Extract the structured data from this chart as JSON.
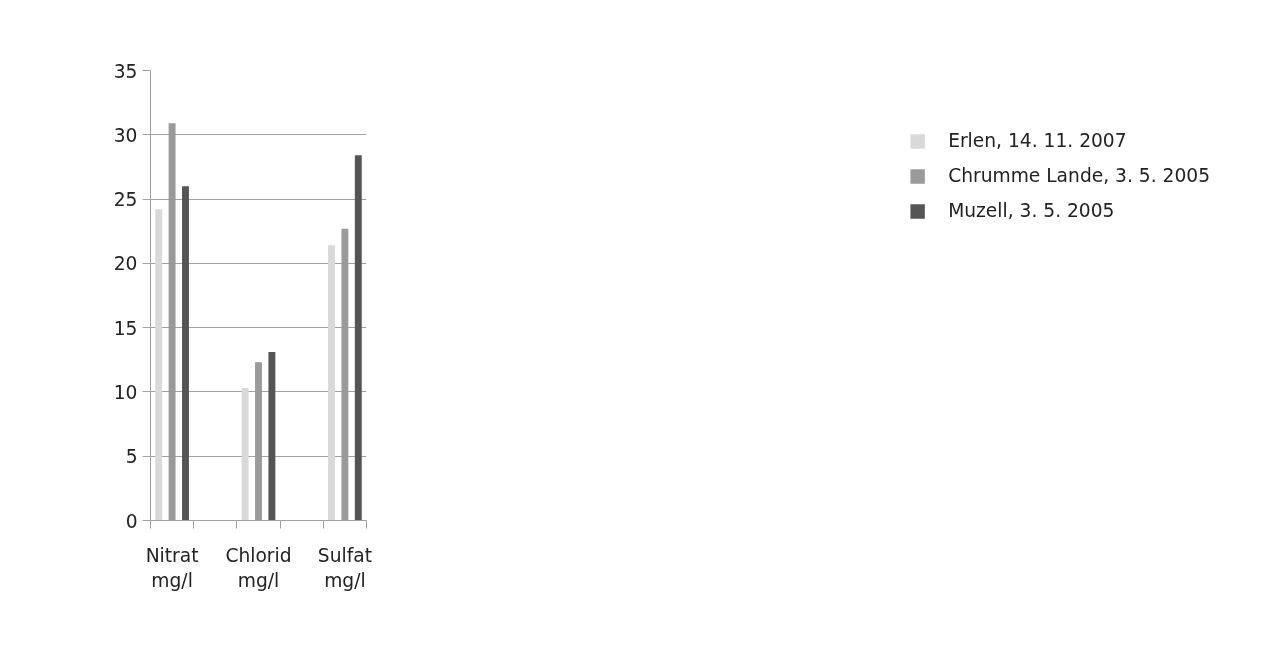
{
  "chart_data": {
    "type": "bar",
    "categories": [
      "Nitrat\nmg/l",
      null,
      "Chlorid\nmg/l",
      null,
      "Sulfat\nmg/l"
    ],
    "series": [
      {
        "name": "Erlen, 14. 11. 2007",
        "color": "#d9d9d9",
        "values": [
          24.2,
          null,
          10.3,
          null,
          21.4
        ]
      },
      {
        "name": "Chrumme Lande, 3. 5. 2005",
        "color": "#9a9a9a",
        "values": [
          30.9,
          null,
          12.3,
          null,
          22.7
        ]
      },
      {
        "name": "Muzell, 3. 5. 2005",
        "color": "#555555",
        "values": [
          26.0,
          null,
          13.1,
          null,
          28.4
        ]
      }
    ],
    "ylim": [
      0,
      35
    ],
    "yticks": [
      0,
      5,
      10,
      15,
      20,
      25,
      30,
      35
    ],
    "grid": "y",
    "legend": "right"
  }
}
